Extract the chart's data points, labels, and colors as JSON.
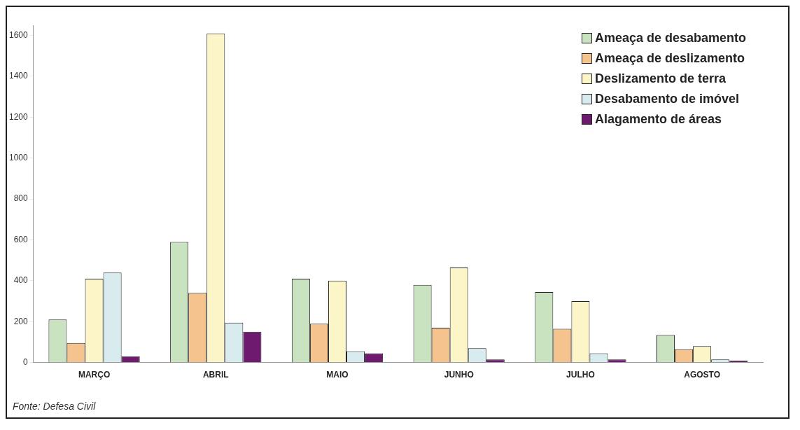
{
  "chart_data": {
    "type": "bar",
    "categories": [
      "MARÇO",
      "ABRIL",
      "MAIO",
      "JUNHO",
      "JULHO",
      "AGOSTO"
    ],
    "series": [
      {
        "name": "Ameaça de desabamento",
        "color": "#c9e2c0",
        "values": [
          210,
          590,
          410,
          380,
          345,
          135
        ]
      },
      {
        "name": "Ameaça de deslizamento",
        "color": "#f5c38e",
        "values": [
          95,
          340,
          190,
          170,
          165,
          65
        ]
      },
      {
        "name": "Deslizamento de terra",
        "color": "#fcf5c8",
        "values": [
          410,
          1610,
          400,
          465,
          300,
          80
        ]
      },
      {
        "name": "Desabamento de imóvel",
        "color": "#d8ecf0",
        "values": [
          440,
          195,
          55,
          70,
          45,
          15
        ]
      },
      {
        "name": "Alagamento de áreas",
        "color": "#6e1a6e",
        "values": [
          30,
          150,
          45,
          15,
          15,
          10
        ]
      }
    ],
    "ylim": [
      0,
      1650
    ],
    "yticks": [
      0,
      200,
      400,
      600,
      800,
      1000,
      1200,
      1400,
      1600
    ],
    "grid": false,
    "legend": "top right",
    "annotations": [
      "Fonte: Defesa Civil"
    ]
  }
}
